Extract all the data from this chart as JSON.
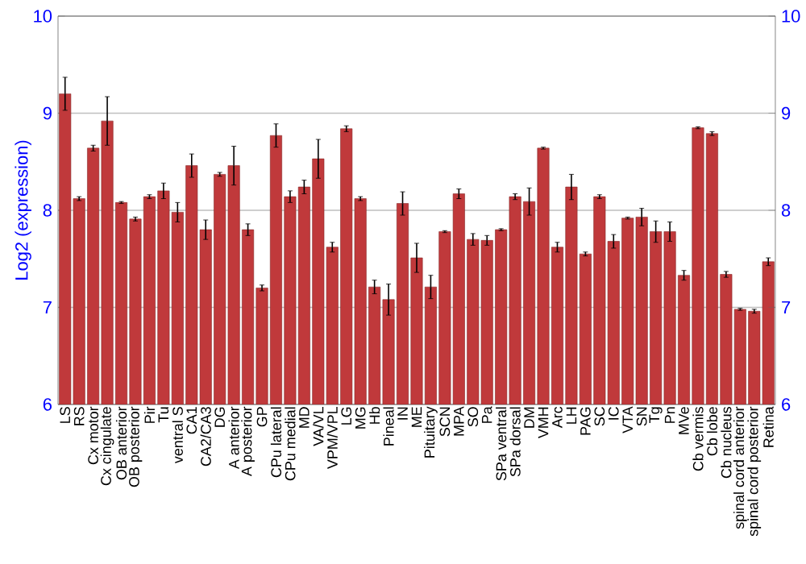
{
  "chart_data": {
    "type": "bar",
    "ylabel": "Log2 (expression)",
    "categories": [
      "LS",
      "RS",
      "Cx motor",
      "Cx cingulate",
      "OB anterior",
      "OB posterior",
      "Pir",
      "Tu",
      "ventral S",
      "CA1",
      "CA2/CA3",
      "DG",
      "A anterior",
      "A posterior",
      "GP",
      "CPu lateral",
      "CPu medial",
      "MD",
      "VA/VL",
      "VPM/VPL",
      "LG",
      "MG",
      "Hb",
      "Pineal",
      "IN",
      "ME",
      "Pituitary",
      "SCN",
      "MPA",
      "SO",
      "Pa",
      "SPa ventral",
      "SPa dorsal",
      "DM",
      "VMH",
      "Arc",
      "LH",
      "PAG",
      "SC",
      "IC",
      "VTA",
      "SN",
      "Tg",
      "Pn",
      "MVe",
      "Cb vermis",
      "Cb lobe",
      "Cb nucleus",
      "spinal cord anterior",
      "spinal cord posterior",
      "Retina"
    ],
    "values": [
      9.2,
      8.12,
      8.64,
      8.92,
      8.08,
      7.91,
      8.14,
      8.2,
      7.98,
      8.46,
      7.8,
      8.37,
      8.46,
      7.8,
      7.2,
      8.77,
      8.14,
      8.24,
      8.53,
      7.62,
      8.84,
      8.12,
      7.21,
      7.08,
      8.07,
      7.51,
      7.21,
      7.78,
      8.17,
      7.7,
      7.69,
      7.8,
      8.14,
      8.09,
      8.64,
      7.62,
      8.24,
      7.55,
      8.14,
      7.68,
      7.92,
      7.93,
      7.78,
      7.78,
      7.33,
      8.85,
      8.79,
      7.34,
      6.98,
      6.96,
      7.47
    ],
    "errors": [
      0.17,
      0.02,
      0.03,
      0.25,
      0.01,
      0.02,
      0.02,
      0.08,
      0.1,
      0.12,
      0.1,
      0.02,
      0.2,
      0.06,
      0.03,
      0.12,
      0.06,
      0.07,
      0.2,
      0.05,
      0.03,
      0.02,
      0.07,
      0.16,
      0.12,
      0.15,
      0.12,
      0.01,
      0.05,
      0.06,
      0.05,
      0.01,
      0.03,
      0.14,
      0.01,
      0.05,
      0.13,
      0.02,
      0.02,
      0.07,
      0.01,
      0.09,
      0.11,
      0.1,
      0.05,
      0.01,
      0.02,
      0.03,
      0.01,
      0.02,
      0.04
    ],
    "color": "#c0393b",
    "ylim": [
      6,
      10
    ],
    "yticks": [
      6,
      7,
      8,
      9,
      10
    ],
    "y2lim": [
      6,
      10
    ],
    "y2ticks": [
      6,
      7,
      8,
      9,
      10
    ],
    "grid": "y"
  }
}
